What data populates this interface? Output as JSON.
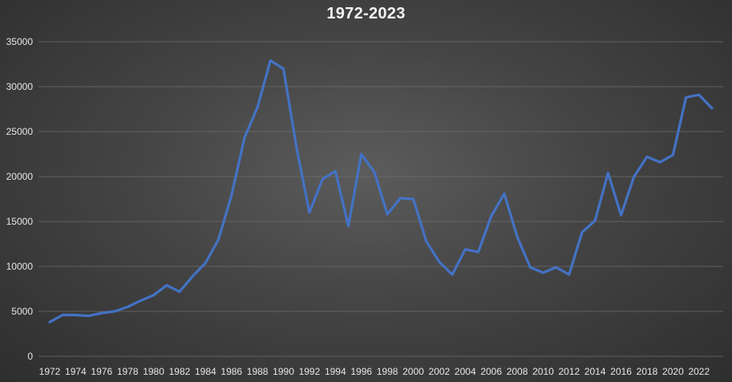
{
  "chart_data": {
    "type": "line",
    "title": "1972-2023",
    "xlabel": "",
    "ylabel": "",
    "ylim": [
      0,
      35000
    ],
    "yticks": [
      0,
      5000,
      10000,
      15000,
      20000,
      25000,
      30000,
      35000
    ],
    "xticks": [
      1972,
      1974,
      1976,
      1978,
      1980,
      1982,
      1984,
      1986,
      1988,
      1990,
      1992,
      1994,
      1996,
      1998,
      2000,
      2002,
      2004,
      2006,
      2008,
      2010,
      2012,
      2014,
      2016,
      2018,
      2020,
      2022
    ],
    "grid": true,
    "legend": "none",
    "line_color": "#4472c4",
    "x": [
      1972,
      1973,
      1974,
      1975,
      1976,
      1977,
      1978,
      1979,
      1980,
      1981,
      1982,
      1983,
      1984,
      1985,
      1986,
      1987,
      1988,
      1989,
      1990,
      1991,
      1992,
      1993,
      1994,
      1995,
      1996,
      1997,
      1998,
      1999,
      2000,
      2001,
      2002,
      2003,
      2004,
      2005,
      2006,
      2007,
      2008,
      2009,
      2010,
      2011,
      2012,
      2013,
      2014,
      2015,
      2016,
      2017,
      2018,
      2019,
      2020,
      2021,
      2022,
      2023
    ],
    "values": [
      3800,
      4600,
      4600,
      4500,
      4800,
      5000,
      5500,
      6200,
      6800,
      7900,
      7200,
      8900,
      10400,
      13000,
      17900,
      24300,
      27700,
      32900,
      32000,
      23300,
      16000,
      19700,
      20600,
      14500,
      22500,
      20500,
      15800,
      17600,
      17500,
      12800,
      10500,
      9100,
      11900,
      11600,
      15600,
      18100,
      13300,
      9900,
      9300,
      9900,
      9100,
      13800,
      15100,
      20400,
      15700,
      20000,
      22200,
      21600,
      22400,
      28800,
      29100,
      27600
    ]
  }
}
